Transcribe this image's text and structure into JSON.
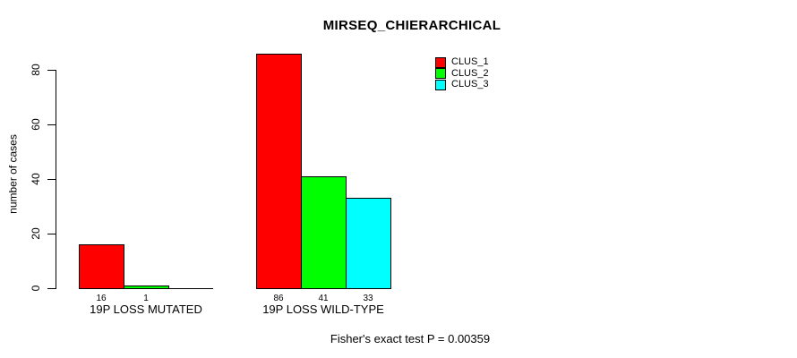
{
  "chart_data": {
    "type": "bar",
    "title": "MIRSEQ_CHIERARCHICAL",
    "ylabel": "number of cases",
    "xlabel": "",
    "ylim": [
      0,
      80
    ],
    "yticks": [
      0,
      20,
      40,
      60,
      80
    ],
    "grid": false,
    "legend_position": "top-right",
    "categories": [
      "19P LOSS MUTATED",
      "19P LOSS WILD-TYPE"
    ],
    "series": [
      {
        "name": "CLUS_1",
        "color": "#ff0000",
        "values": [
          16,
          86
        ]
      },
      {
        "name": "CLUS_2",
        "color": "#00ff00",
        "values": [
          1,
          41
        ]
      },
      {
        "name": "CLUS_3",
        "color": "#00ffff",
        "values": [
          0,
          33
        ]
      }
    ],
    "bar_value_labels": [
      [
        "16",
        "1",
        ""
      ],
      [
        "86",
        "41",
        "33"
      ]
    ],
    "annotation": "Fisher's exact test P = 0.00359",
    "bar_border_color": "#000000",
    "background": "#ffffff"
  }
}
